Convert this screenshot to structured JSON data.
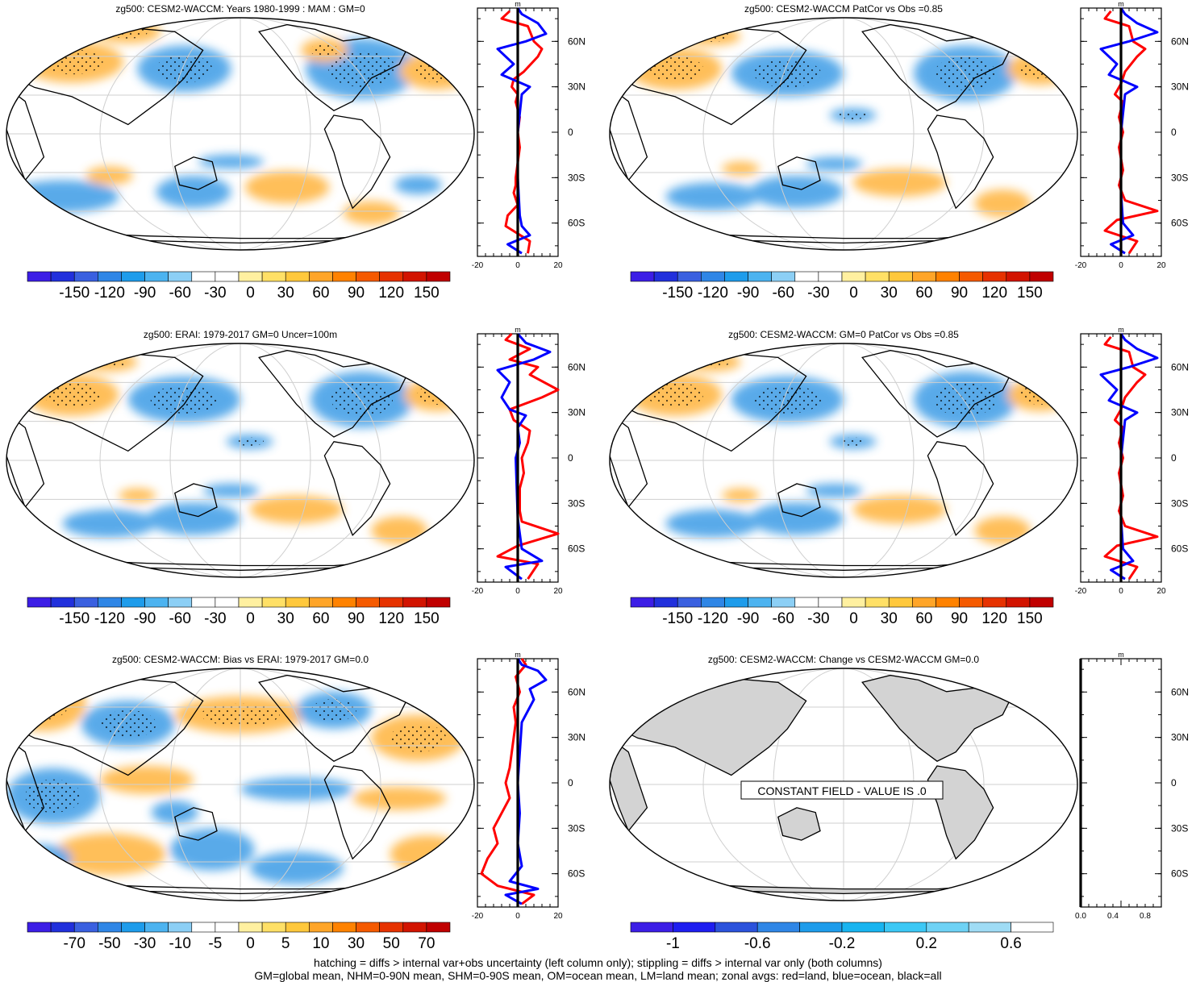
{
  "colors": {
    "zg_scale": [
      "#3c1ee6",
      "#2130dc",
      "#3a60e0",
      "#2f86e6",
      "#1e9ceb",
      "#4cb3f0",
      "#8ccff5",
      "#ffffff",
      "#ffffff",
      "#fff0a0",
      "#ffe066",
      "#ffc83c",
      "#ffa528",
      "#ff8200",
      "#f55a00",
      "#e63200",
      "#d21400",
      "#c00000"
    ],
    "change_scale": [
      "#3c1ee6",
      "#1e1ef0",
      "#2b52dc",
      "#2f86e6",
      "#1e9ceb",
      "#18b4f0",
      "#3cc8f5",
      "#6ed2f5",
      "#9fdcf5",
      "#ffffff"
    ],
    "red_line": "#ff0000",
    "blue_line": "#0000ff",
    "land_gray": "#d3d3d3",
    "warm_fill": "#ffb43c",
    "cool_fill": "#3c9ce6"
  },
  "panels": [
    {
      "title": "zg500: CESM2-WACCM: Years 1980-1999 : MAM : GM=0",
      "colorbar_labels": [
        "-150",
        "-120",
        "-90",
        "-60",
        "-30",
        "0",
        "30",
        "60",
        "90",
        "120",
        "150"
      ],
      "profile": {
        "unit": "m",
        "x_ticks": [
          "-20",
          "0",
          "20"
        ],
        "lat_labels": [
          "60N",
          "30N",
          "0",
          "30S",
          "60S"
        ],
        "red": [
          [
            -80,
            5
          ],
          [
            -72,
            6
          ],
          [
            -62,
            -6
          ],
          [
            -55,
            -5
          ],
          [
            -48,
            0
          ],
          [
            -40,
            -2
          ],
          [
            -35,
            -1
          ],
          [
            -30,
            -1
          ],
          [
            -20,
            0
          ],
          [
            -10,
            1
          ],
          [
            0,
            0
          ],
          [
            10,
            1
          ],
          [
            20,
            -1
          ],
          [
            25,
            0
          ],
          [
            30,
            -3
          ],
          [
            35,
            -2
          ],
          [
            40,
            3
          ],
          [
            50,
            10
          ],
          [
            55,
            12
          ],
          [
            60,
            8
          ],
          [
            70,
            5
          ],
          [
            75,
            -8
          ],
          [
            80,
            -4
          ]
        ],
        "blue": [
          [
            -80,
            2
          ],
          [
            -74,
            -5
          ],
          [
            -68,
            6
          ],
          [
            -62,
            2
          ],
          [
            -55,
            1
          ],
          [
            -30,
            0
          ],
          [
            0,
            0
          ],
          [
            25,
            2
          ],
          [
            30,
            6
          ],
          [
            38,
            -8
          ],
          [
            45,
            -2
          ],
          [
            55,
            -10
          ],
          [
            60,
            4
          ],
          [
            65,
            14
          ],
          [
            72,
            10
          ],
          [
            78,
            2
          ],
          [
            82,
            0
          ]
        ]
      }
    },
    {
      "title": "zg500: CESM2-WACCM PatCor vs Obs =0.85",
      "colorbar_labels": [
        "-150",
        "-120",
        "-90",
        "-60",
        "-30",
        "0",
        "30",
        "60",
        "90",
        "120",
        "150"
      ],
      "profile": {
        "unit": "m",
        "x_ticks": [
          "-20",
          "0",
          "20"
        ],
        "lat_labels": [
          "60N",
          "30N",
          "0",
          "30S",
          "60S"
        ],
        "red": [
          [
            -80,
            4
          ],
          [
            -72,
            8
          ],
          [
            -65,
            -8
          ],
          [
            -58,
            -2
          ],
          [
            -52,
            18
          ],
          [
            -45,
            2
          ],
          [
            -35,
            -1
          ],
          [
            -25,
            1
          ],
          [
            -10,
            -1
          ],
          [
            0,
            1
          ],
          [
            10,
            -1
          ],
          [
            20,
            1
          ],
          [
            25,
            -3
          ],
          [
            32,
            0
          ],
          [
            40,
            2
          ],
          [
            50,
            8
          ],
          [
            55,
            12
          ],
          [
            60,
            6
          ],
          [
            70,
            4
          ],
          [
            75,
            -8
          ],
          [
            80,
            -5
          ]
        ],
        "blue": [
          [
            -80,
            2
          ],
          [
            -74,
            -5
          ],
          [
            -68,
            6
          ],
          [
            -60,
            1
          ],
          [
            -40,
            0
          ],
          [
            0,
            0
          ],
          [
            25,
            2
          ],
          [
            30,
            8
          ],
          [
            38,
            -6
          ],
          [
            45,
            -2
          ],
          [
            55,
            -10
          ],
          [
            60,
            4
          ],
          [
            66,
            18
          ],
          [
            72,
            8
          ],
          [
            78,
            2
          ],
          [
            82,
            0
          ]
        ]
      }
    },
    {
      "title": "zg500: ERAI: 1979-2017 GM=0 Uncer=100m",
      "colorbar_labels": [
        "-150",
        "-120",
        "-90",
        "-60",
        "-30",
        "0",
        "30",
        "60",
        "90",
        "120",
        "150"
      ],
      "profile": {
        "unit": "m",
        "x_ticks": [
          "-20",
          "0",
          "20"
        ],
        "lat_labels": [
          "60N",
          "30N",
          "0",
          "30S",
          "60S"
        ],
        "red": [
          [
            -80,
            5
          ],
          [
            -70,
            10
          ],
          [
            -65,
            -10
          ],
          [
            -58,
            0
          ],
          [
            -50,
            20
          ],
          [
            -42,
            2
          ],
          [
            -35,
            1
          ],
          [
            -20,
            1
          ],
          [
            -10,
            3
          ],
          [
            0,
            2
          ],
          [
            10,
            5
          ],
          [
            18,
            6
          ],
          [
            25,
            -2
          ],
          [
            32,
            -4
          ],
          [
            40,
            12
          ],
          [
            45,
            20
          ],
          [
            55,
            6
          ],
          [
            60,
            10
          ],
          [
            65,
            -4
          ],
          [
            72,
            6
          ],
          [
            78,
            -6
          ],
          [
            82,
            -3
          ]
        ],
        "blue": [
          [
            -80,
            2
          ],
          [
            -72,
            -6
          ],
          [
            -68,
            12
          ],
          [
            -60,
            2
          ],
          [
            -40,
            0
          ],
          [
            0,
            -1
          ],
          [
            10,
            1
          ],
          [
            20,
            0
          ],
          [
            28,
            4
          ],
          [
            32,
            -4
          ],
          [
            40,
            -8
          ],
          [
            50,
            -4
          ],
          [
            58,
            -10
          ],
          [
            65,
            8
          ],
          [
            70,
            16
          ],
          [
            76,
            4
          ],
          [
            82,
            0
          ]
        ]
      }
    },
    {
      "title": "zg500: CESM2-WACCM: GM=0 PatCor vs Obs =0.85",
      "colorbar_labels": [
        "-150",
        "-120",
        "-90",
        "-60",
        "-30",
        "0",
        "30",
        "60",
        "90",
        "120",
        "150"
      ],
      "profile": {
        "unit": "m",
        "x_ticks": [
          "-20",
          "0",
          "20"
        ],
        "lat_labels": [
          "60N",
          "30N",
          "0",
          "30S",
          "60S"
        ],
        "red": [
          [
            -80,
            4
          ],
          [
            -72,
            8
          ],
          [
            -65,
            -8
          ],
          [
            -58,
            -2
          ],
          [
            -52,
            18
          ],
          [
            -45,
            2
          ],
          [
            -35,
            -1
          ],
          [
            -25,
            1
          ],
          [
            -10,
            -1
          ],
          [
            0,
            1
          ],
          [
            10,
            -1
          ],
          [
            20,
            1
          ],
          [
            25,
            -3
          ],
          [
            32,
            0
          ],
          [
            40,
            2
          ],
          [
            50,
            8
          ],
          [
            55,
            12
          ],
          [
            60,
            6
          ],
          [
            70,
            4
          ],
          [
            75,
            -8
          ],
          [
            80,
            -5
          ]
        ],
        "blue": [
          [
            -80,
            2
          ],
          [
            -74,
            -5
          ],
          [
            -68,
            6
          ],
          [
            -60,
            1
          ],
          [
            -40,
            0
          ],
          [
            0,
            0
          ],
          [
            25,
            2
          ],
          [
            30,
            8
          ],
          [
            38,
            -6
          ],
          [
            45,
            -2
          ],
          [
            55,
            -10
          ],
          [
            60,
            4
          ],
          [
            66,
            18
          ],
          [
            72,
            8
          ],
          [
            78,
            2
          ],
          [
            82,
            0
          ]
        ]
      }
    },
    {
      "title": "zg500: CESM2-WACCM: Bias vs ERAI: 1979-2017 GM=0.0",
      "colorbar_labels": [
        "-70",
        "-50",
        "-30",
        "-10",
        "-5",
        "0",
        "5",
        "10",
        "30",
        "50",
        "70"
      ],
      "profile": {
        "unit": "m",
        "x_ticks": [
          "-20",
          "0",
          "20"
        ],
        "lat_labels": [
          "60N",
          "30N",
          "0",
          "30S",
          "60S"
        ],
        "red": [
          [
            -80,
            2
          ],
          [
            -74,
            8
          ],
          [
            -68,
            -10
          ],
          [
            -60,
            -18
          ],
          [
            -50,
            -15
          ],
          [
            -40,
            -10
          ],
          [
            -30,
            -12
          ],
          [
            -20,
            -8
          ],
          [
            -10,
            -4
          ],
          [
            0,
            -6
          ],
          [
            10,
            -4
          ],
          [
            20,
            -3
          ],
          [
            30,
            -2
          ],
          [
            40,
            -1
          ],
          [
            50,
            -2
          ],
          [
            60,
            1
          ],
          [
            70,
            -1
          ],
          [
            78,
            4
          ],
          [
            82,
            2
          ]
        ],
        "blue": [
          [
            -80,
            2
          ],
          [
            -74,
            -6
          ],
          [
            -70,
            10
          ],
          [
            -65,
            -4
          ],
          [
            -55,
            2
          ],
          [
            -40,
            0
          ],
          [
            -20,
            1
          ],
          [
            0,
            0
          ],
          [
            20,
            1
          ],
          [
            40,
            2
          ],
          [
            55,
            8
          ],
          [
            62,
            6
          ],
          [
            68,
            14
          ],
          [
            74,
            10
          ],
          [
            78,
            2
          ],
          [
            82,
            0
          ]
        ]
      }
    },
    {
      "title": "zg500: CESM2-WACCM: Change vs CESM2-WACCM GM=0.0",
      "colorbar_labels": [
        "-1",
        "-0.6",
        "-0.2",
        "0.2",
        "0.6"
      ],
      "constant_field_text": "CONSTANT FIELD - VALUE IS .0",
      "profile": {
        "unit": "m",
        "x_ticks": [
          "0.0",
          "0.4",
          "0.8"
        ],
        "lat_labels": [
          "60N",
          "30N",
          "0",
          "30S",
          "60S"
        ],
        "red": [],
        "blue": []
      }
    }
  ],
  "footer": {
    "line1": "hatching = diffs > internal var+obs uncertainty (left column only); stippling = diffs > internal var only (both columns)",
    "line2": "GM=global mean, NHM=0-90N mean, SHM=0-90S mean, OM=ocean mean, LM=land mean; zonal avgs: red=land, blue=ocean, black=all"
  }
}
